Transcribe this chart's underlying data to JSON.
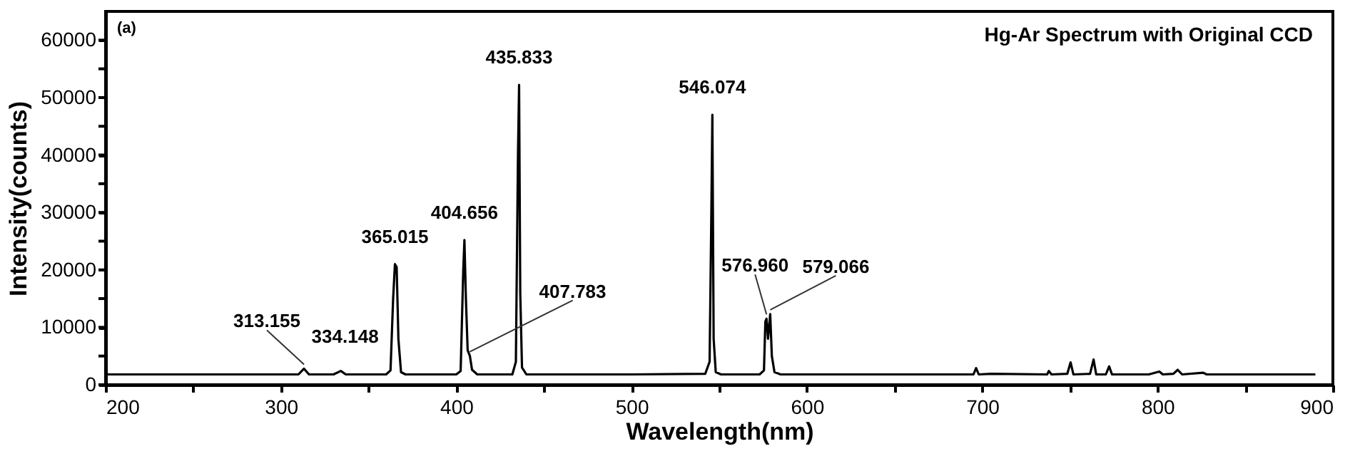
{
  "chart_data": {
    "type": "line",
    "title": "Hg-Ar Spectrum with Original CCD",
    "xlabel": "Wavelength(nm)",
    "ylabel": "Intensity(counts)",
    "annotations": [
      "(a)",
      {
        "text": "313.155",
        "x": 313.155,
        "y": 2800
      },
      {
        "text": "334.148",
        "x": 334.148,
        "y": 2400
      },
      {
        "text": "365.015",
        "x": 365.015,
        "y": 21000
      },
      {
        "text": "404.656",
        "x": 404.656,
        "y": 25200
      },
      {
        "text": "407.783",
        "x": 407.783,
        "y": 5000
      },
      {
        "text": "435.833",
        "x": 435.833,
        "y": 52200
      },
      {
        "text": "546.074",
        "x": 546.074,
        "y": 47000
      },
      {
        "text": "576.960",
        "x": 576.96,
        "y": 11500
      },
      {
        "text": "579.066",
        "x": 579.066,
        "y": 12300
      }
    ],
    "x": [
      200,
      250,
      300,
      310,
      313.155,
      316,
      330,
      334.148,
      337,
      360,
      362.5,
      364,
      365.015,
      366,
      367,
      368.5,
      371,
      400,
      402.5,
      404,
      404.656,
      405.5,
      406.5,
      407.783,
      409,
      412,
      432,
      434,
      435.2,
      435.833,
      436.5,
      437.5,
      440,
      500,
      542,
      544.5,
      545.5,
      546.074,
      546.8,
      548,
      551,
      573,
      575.5,
      576.3,
      576.96,
      577.8,
      578.4,
      579.066,
      580,
      581.5,
      585,
      695,
      696.5,
      698,
      705,
      737,
      738,
      739.5,
      748.5,
      750.4,
      752,
      761.5,
      763.5,
      765,
      770.5,
      772.4,
      774,
      795,
      801,
      803,
      809,
      811.5,
      814,
      826,
      828,
      890
    ],
    "series": [
      {
        "color": "#000000",
        "values": [
          1800,
          1800,
          1800,
          1800,
          2800,
          1800,
          1800,
          2400,
          1800,
          1800,
          2500,
          15000,
          21000,
          20500,
          8000,
          2200,
          1800,
          1800,
          2400,
          20000,
          25200,
          15000,
          6000,
          5000,
          2600,
          1800,
          1800,
          4000,
          40000,
          52200,
          16000,
          3000,
          1800,
          1800,
          1900,
          4000,
          30000,
          47000,
          8000,
          2200,
          1800,
          1800,
          2500,
          11000,
          11500,
          8000,
          10000,
          12300,
          5000,
          2200,
          1800,
          1800,
          2900,
          1800,
          1900,
          1800,
          2400,
          1800,
          1900,
          3900,
          1800,
          1900,
          4400,
          1800,
          1800,
          3200,
          1800,
          1800,
          2300,
          1800,
          1900,
          2600,
          1800,
          2100,
          1800,
          1800
        ]
      }
    ],
    "xlim": [
      200,
      900
    ],
    "ylim": [
      0,
      65000
    ],
    "xticks": [
      200,
      {
        "value": 250,
        "label": null
      },
      300,
      {
        "value": 350,
        "label": null
      },
      400,
      {
        "value": 450,
        "label": null
      },
      500,
      {
        "value": 550,
        "label": null
      },
      600,
      {
        "value": 650,
        "label": null
      },
      700,
      {
        "value": 750,
        "label": null
      },
      800,
      {
        "value": 850,
        "label": null
      },
      900
    ],
    "yticks": [
      0,
      {
        "value": 5000,
        "label": null
      },
      10000,
      {
        "value": 15000,
        "label": null
      },
      20000,
      {
        "value": 25000,
        "label": null
      },
      30000,
      {
        "value": 35000,
        "label": null
      },
      40000,
      {
        "value": 45000,
        "label": null
      },
      50000,
      {
        "value": 55000,
        "label": null
      },
      60000
    ],
    "grid": false,
    "marker": "none",
    "line_style": "solid"
  }
}
